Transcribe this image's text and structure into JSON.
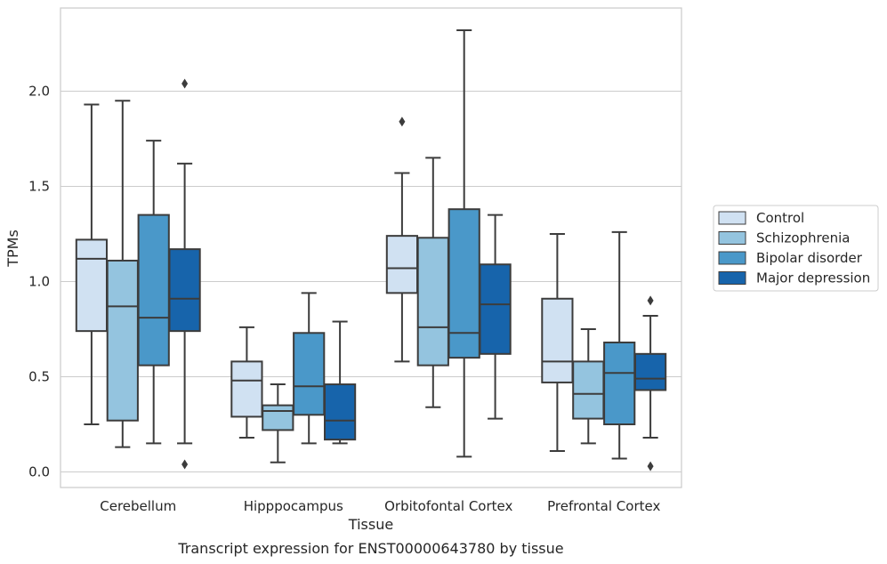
{
  "caption": "Transcript expression for ENST00000643780 by tissue",
  "chart_data": {
    "type": "boxplot",
    "xlabel": "Tissue",
    "ylabel": "TPMs",
    "ylim": [
      -0.08,
      2.44
    ],
    "yticks": [
      "0.0",
      "0.5",
      "1.0",
      "1.5",
      "2.0"
    ],
    "ytick_values": [
      0.0,
      0.5,
      1.0,
      1.5,
      2.0
    ],
    "grid": "horizontal",
    "legend_position": "right",
    "categories": [
      "Cerebellum",
      "Hipppocampus",
      "Orbitofontal Cortex",
      "Prefrontal Cortex"
    ],
    "series": [
      {
        "name": "Control",
        "color": "#d0e1f2",
        "boxes": [
          {
            "whislo": 0.25,
            "q1": 0.74,
            "med": 1.12,
            "q3": 1.22,
            "whishi": 1.93,
            "fliers": []
          },
          {
            "whislo": 0.18,
            "q1": 0.29,
            "med": 0.48,
            "q3": 0.58,
            "whishi": 0.76,
            "fliers": []
          },
          {
            "whislo": 0.58,
            "q1": 0.94,
            "med": 1.07,
            "q3": 1.24,
            "whishi": 1.57,
            "fliers": [
              1.84
            ]
          },
          {
            "whislo": 0.11,
            "q1": 0.47,
            "med": 0.58,
            "q3": 0.91,
            "whishi": 1.25,
            "fliers": []
          }
        ]
      },
      {
        "name": "Schizophrenia",
        "color": "#94c4df",
        "boxes": [
          {
            "whislo": 0.13,
            "q1": 0.27,
            "med": 0.87,
            "q3": 1.11,
            "whishi": 1.95,
            "fliers": []
          },
          {
            "whislo": 0.05,
            "q1": 0.22,
            "med": 0.32,
            "q3": 0.35,
            "whishi": 0.46,
            "fliers": []
          },
          {
            "whislo": 0.34,
            "q1": 0.56,
            "med": 0.76,
            "q3": 1.23,
            "whishi": 1.65,
            "fliers": []
          },
          {
            "whislo": 0.15,
            "q1": 0.28,
            "med": 0.41,
            "q3": 0.58,
            "whishi": 0.75,
            "fliers": []
          }
        ]
      },
      {
        "name": "Bipolar disorder",
        "color": "#4a98c9",
        "boxes": [
          {
            "whislo": 0.15,
            "q1": 0.56,
            "med": 0.81,
            "q3": 1.35,
            "whishi": 1.74,
            "fliers": []
          },
          {
            "whislo": 0.15,
            "q1": 0.3,
            "med": 0.45,
            "q3": 0.73,
            "whishi": 0.94,
            "fliers": []
          },
          {
            "whislo": 0.08,
            "q1": 0.6,
            "med": 0.73,
            "q3": 1.38,
            "whishi": 2.32,
            "fliers": []
          },
          {
            "whislo": 0.07,
            "q1": 0.25,
            "med": 0.52,
            "q3": 0.68,
            "whishi": 1.26,
            "fliers": []
          }
        ]
      },
      {
        "name": "Major depression",
        "color": "#1764ab",
        "boxes": [
          {
            "whislo": 0.15,
            "q1": 0.74,
            "med": 0.91,
            "q3": 1.17,
            "whishi": 1.62,
            "fliers": [
              2.04,
              0.04
            ]
          },
          {
            "whislo": 0.15,
            "q1": 0.17,
            "med": 0.27,
            "q3": 0.46,
            "whishi": 0.79,
            "fliers": []
          },
          {
            "whislo": 0.28,
            "q1": 0.62,
            "med": 0.88,
            "q3": 1.09,
            "whishi": 1.35,
            "fliers": []
          },
          {
            "whislo": 0.18,
            "q1": 0.43,
            "med": 0.49,
            "q3": 0.62,
            "whishi": 0.82,
            "fliers": [
              0.9,
              0.03
            ]
          }
        ]
      }
    ]
  }
}
